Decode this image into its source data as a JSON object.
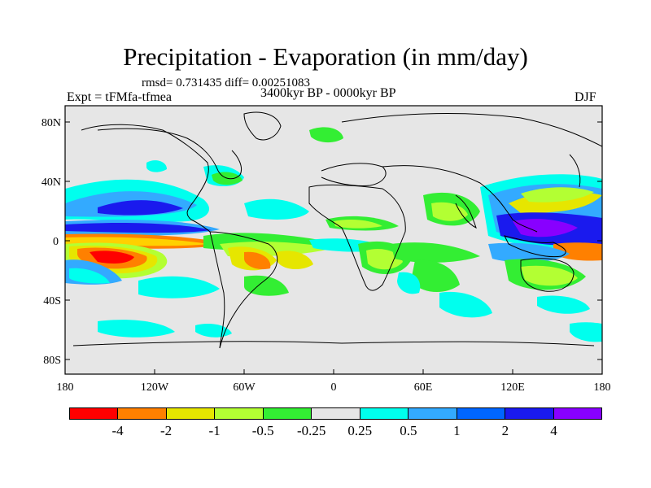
{
  "title": "Precipitation - Evaporation (in mm/day)",
  "stats": "rmsd= 0.731435 diff= 0.00251083",
  "experiment": "Expt = tFMfa-tfmea",
  "period": "3400kyr BP - 0000kyr BP",
  "season": "DJF",
  "y_ticks": [
    "80N",
    "40N",
    "0",
    "40S",
    "80S"
  ],
  "x_ticks": [
    "180",
    "120W",
    "60W",
    "0",
    "60E",
    "120E",
    "180"
  ],
  "colorbar": {
    "colors": [
      "#ff0000",
      "#ff8000",
      "#e6e600",
      "#b3ff33",
      "#33ee33",
      "#e6e6e6",
      "#00ffee",
      "#33aaff",
      "#0066ff",
      "#1a1aee",
      "#8800ff"
    ],
    "labels": [
      "-4",
      "-2",
      "-1",
      "-0.5",
      "-0.25",
      "0.25",
      "0.5",
      "1",
      "2",
      "4"
    ]
  },
  "background_color": "#e6e6e6"
}
